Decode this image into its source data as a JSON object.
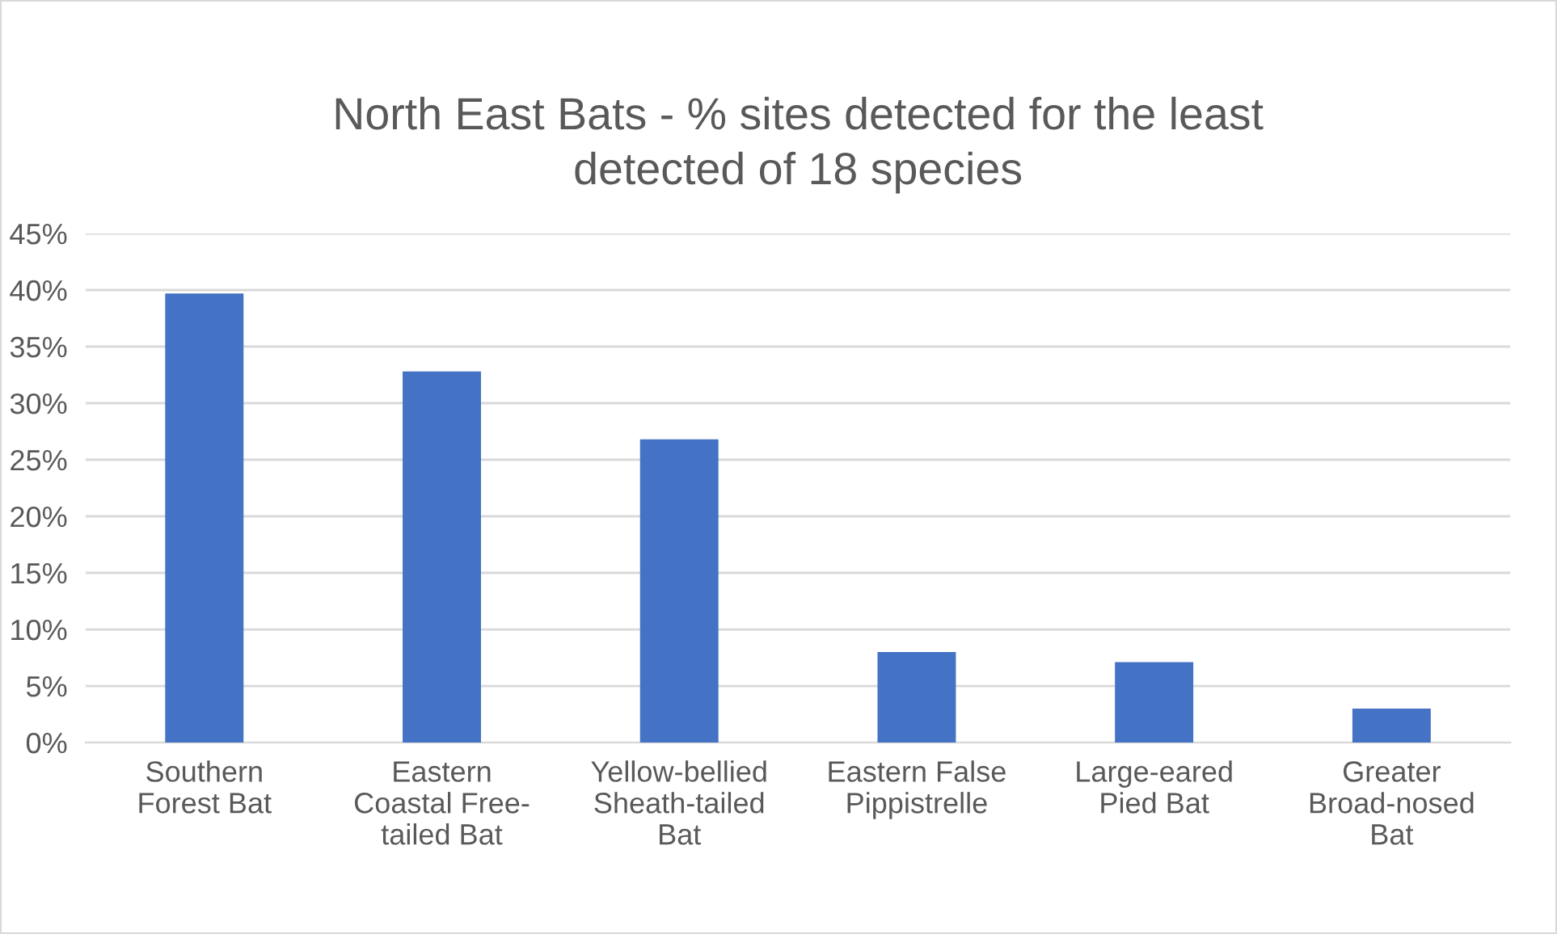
{
  "chart_data": {
    "type": "bar",
    "title": "North East Bats - % sites detected for the least\ndetected of 18 species",
    "categories": [
      "Southern\nForest Bat",
      "Eastern\nCoastal Free-\ntailed Bat",
      "Yellow-bellied\nSheath-tailed\nBat",
      "Eastern False\nPippistrelle",
      "Large-eared\nPied Bat",
      "Greater\nBroad-nosed\nBat"
    ],
    "values": [
      39.7,
      32.8,
      26.8,
      8.0,
      7.1,
      3.0
    ],
    "color": "#4472c4",
    "ylim": [
      0,
      45
    ],
    "yticks": [
      {
        "value": 0,
        "label": "0%"
      },
      {
        "value": 5,
        "label": "5%"
      },
      {
        "value": 10,
        "label": "10%"
      },
      {
        "value": 15,
        "label": "15%"
      },
      {
        "value": 20,
        "label": "20%"
      },
      {
        "value": 25,
        "label": "25%"
      },
      {
        "value": 30,
        "label": "30%"
      },
      {
        "value": 35,
        "label": "35%"
      },
      {
        "value": 40,
        "label": "40%"
      },
      {
        "value": 45,
        "label": "45%"
      }
    ],
    "grid": "y"
  }
}
